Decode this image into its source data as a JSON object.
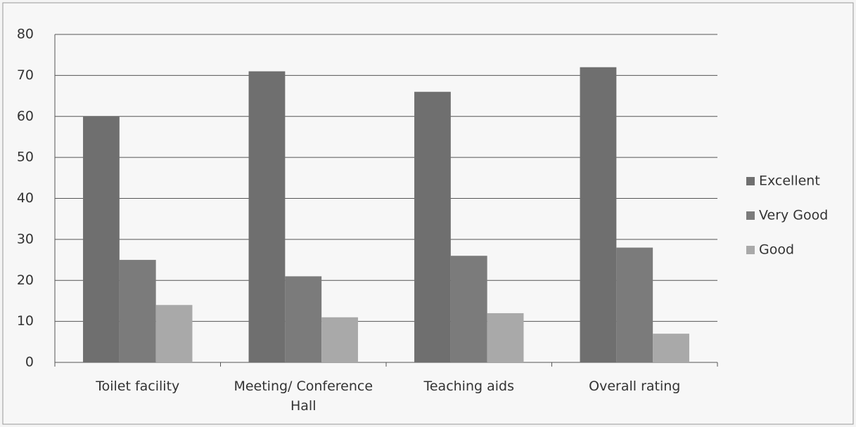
{
  "chart_data": {
    "type": "bar",
    "categories": [
      "Toilet facility",
      "Meeting/ Conference Hall",
      "Teaching aids",
      "Overall rating"
    ],
    "series": [
      {
        "name": "Excellent",
        "color": "#6f6f6f",
        "values": [
          60,
          71,
          66,
          72
        ]
      },
      {
        "name": "Very Good",
        "color": "#7b7b7b",
        "values": [
          25,
          21,
          26,
          28
        ]
      },
      {
        "name": "Good",
        "color": "#a9a9a9",
        "values": [
          14,
          11,
          12,
          7
        ]
      }
    ],
    "ylim": [
      0,
      80
    ],
    "yticks": [
      0,
      10,
      20,
      30,
      40,
      50,
      60,
      70,
      80
    ],
    "grid": true,
    "legend": "right"
  }
}
